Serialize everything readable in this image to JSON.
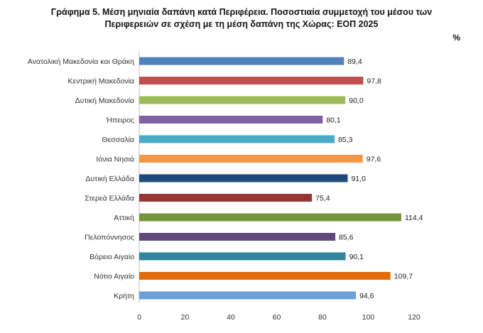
{
  "chart_data": {
    "type": "bar",
    "orientation": "horizontal",
    "title_line1": "Γράφημα 5. Μέση μηνιαία δαπάνη κατά Περιφέρεια. Ποσοστιαία συμμετοχή του μέσου των",
    "title_line2": "Περιφερειών σε σχέση με τη μέση δαπάνη της Χώρας: ΕΟΠ 2025",
    "unit": "%",
    "categories": [
      "Ανατολική Μακεδονία και Θράκη",
      "Κεντρική Μακεδονία",
      "Δυτική Μακεδονία",
      "Ήπειρος",
      "Θεσσαλία",
      "Ιόνια Νησιά",
      "Δυτική Ελλάδα",
      "Στερεά Ελλάδα",
      "Αττική",
      "Πελοπόννησος",
      "Βόρειο Αιγαίο",
      "Νότιο Αιγαίο",
      "Κρήτη"
    ],
    "values": [
      89.4,
      97.8,
      90.0,
      80.1,
      85.3,
      97.6,
      91.0,
      75.4,
      114.4,
      85.6,
      90.1,
      109.7,
      94.6
    ],
    "value_labels": [
      "89,4",
      "97,8",
      "90,0",
      "80,1",
      "85,3",
      "97,6",
      "91,0",
      "75,4",
      "114,4",
      "85,6",
      "90,1",
      "109,7",
      "94,6"
    ],
    "colors": [
      "#4f81bd",
      "#c0504d",
      "#9bbb59",
      "#8064a2",
      "#4bacc6",
      "#f79646",
      "#1f497d",
      "#943634",
      "#77933c",
      "#5f497a",
      "#31859c",
      "#e36c09",
      "#6a9fd8"
    ],
    "xlim": [
      0,
      120
    ],
    "xticks": [
      "0",
      "20",
      "40",
      "60",
      "80",
      "100",
      "120"
    ],
    "grid": false,
    "legend": "none"
  }
}
